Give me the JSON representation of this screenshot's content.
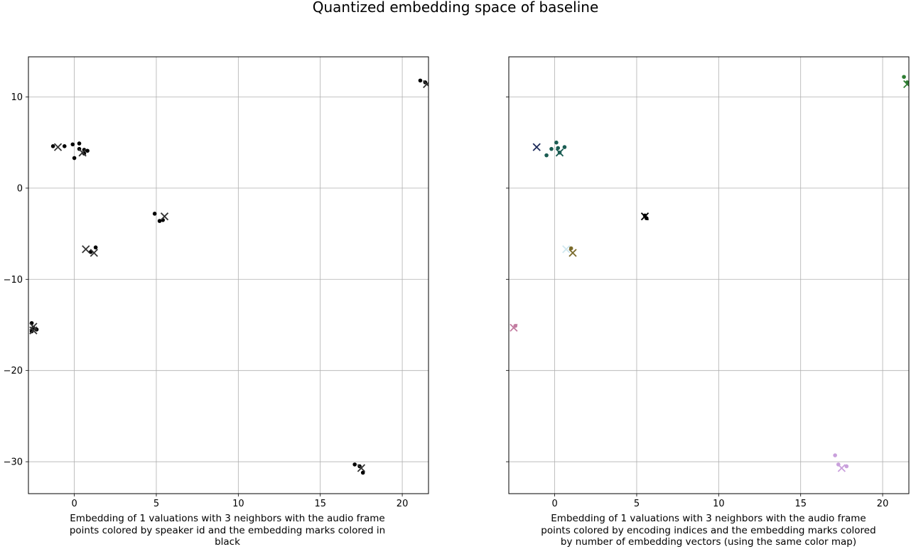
{
  "title": "Quantized embedding space of baseline",
  "chart_data": [
    {
      "type": "scatter",
      "xlabel": "Embedding of 1 valuations with 3 neighbors with the audio frame points colored by speaker id and the embedding marks colored in black",
      "ylabel": "",
      "xlim": [
        -2.8,
        21.6
      ],
      "ylim": [
        -33.5,
        14.4
      ],
      "xticks": [
        0,
        5,
        10,
        15,
        20
      ],
      "yticks": [
        10,
        0,
        -10,
        -20,
        -30
      ],
      "grid": true,
      "series": [
        {
          "marker": "dot",
          "color": "#000000",
          "points": [
            [
              21.1,
              11.8
            ],
            [
              21.4,
              11.6
            ],
            [
              -1.3,
              4.6
            ],
            [
              -0.6,
              4.6
            ],
            [
              -0.1,
              4.8
            ],
            [
              0.3,
              4.9
            ],
            [
              0.3,
              4.3
            ],
            [
              0.6,
              4.2
            ],
            [
              0.8,
              4.1
            ],
            [
              0.6,
              3.8
            ],
            [
              0.0,
              3.3
            ],
            [
              4.9,
              -2.8
            ],
            [
              5.2,
              -3.6
            ],
            [
              5.4,
              -3.5
            ],
            [
              1.3,
              -6.5
            ],
            [
              1.0,
              -7.0
            ],
            [
              -2.6,
              -14.8
            ],
            [
              -2.5,
              -15.3
            ],
            [
              -2.3,
              -15.5
            ],
            [
              -2.6,
              -15.7
            ],
            [
              17.1,
              -30.3
            ],
            [
              17.4,
              -30.5
            ],
            [
              17.6,
              -31.2
            ]
          ]
        },
        {
          "marker": "x",
          "color": "#333333",
          "points": [
            [
              21.5,
              11.4
            ],
            [
              -1.0,
              4.5
            ],
            [
              0.5,
              3.9
            ],
            [
              5.5,
              -3.1
            ],
            [
              0.7,
              -6.7
            ],
            [
              1.2,
              -7.1
            ],
            [
              -2.5,
              -15.2
            ],
            [
              -2.5,
              -15.6
            ],
            [
              17.5,
              -30.7
            ]
          ]
        }
      ]
    },
    {
      "type": "scatter",
      "xlabel": "Embedding of 1 valuations with 3 neighbors with the audio frame points colored by encoding indices and the embedding marks colored by number of embedding vectors (using the same color map)",
      "ylabel": "",
      "xlim": [
        -2.8,
        21.6
      ],
      "ylim": [
        -33.5,
        14.4
      ],
      "xticks": [
        0,
        5,
        10,
        15,
        20
      ],
      "yticks": [
        10,
        0,
        -10,
        -20,
        -30
      ],
      "grid": true,
      "series": [
        {
          "marker": "dot",
          "points": [
            {
              "x": 21.3,
              "y": 12.2,
              "color": "#2e7d32"
            },
            {
              "x": 21.5,
              "y": 11.6,
              "color": "#2e7d32"
            },
            {
              "x": 0.1,
              "y": 5.0,
              "color": "#1a5c52"
            },
            {
              "x": -0.2,
              "y": 4.3,
              "color": "#1a5c52"
            },
            {
              "x": 0.2,
              "y": 4.4,
              "color": "#1a5c52"
            },
            {
              "x": 0.6,
              "y": 4.5,
              "color": "#1a5c52"
            },
            {
              "x": -0.5,
              "y": 3.6,
              "color": "#1a5c52"
            },
            {
              "x": 0.3,
              "y": 3.9,
              "color": "#1a5c52"
            },
            {
              "x": 5.5,
              "y": -3.0,
              "color": "#000000"
            },
            {
              "x": 5.6,
              "y": -3.3,
              "color": "#000000"
            },
            {
              "x": 1.0,
              "y": -6.6,
              "color": "#7a6a2a"
            },
            {
              "x": -2.4,
              "y": -15.1,
              "color": "#c27ba0"
            },
            {
              "x": 17.1,
              "y": -29.3,
              "color": "#c9a0dc"
            },
            {
              "x": 17.3,
              "y": -30.3,
              "color": "#c9a0dc"
            },
            {
              "x": 17.8,
              "y": -30.5,
              "color": "#c9a0dc"
            }
          ]
        },
        {
          "marker": "x",
          "points": [
            {
              "x": 21.5,
              "y": 11.4,
              "color": "#2e7d32"
            },
            {
              "x": -1.1,
              "y": 4.5,
              "color": "#1c2a5a"
            },
            {
              "x": 0.3,
              "y": 3.9,
              "color": "#1a5c52"
            },
            {
              "x": 5.5,
              "y": -3.1,
              "color": "#000000"
            },
            {
              "x": 0.7,
              "y": -6.7,
              "color": "#cfe7ef"
            },
            {
              "x": 1.1,
              "y": -7.1,
              "color": "#7a6a2a"
            },
            {
              "x": -2.5,
              "y": -15.3,
              "color": "#c27ba0"
            },
            {
              "x": 17.5,
              "y": -30.7,
              "color": "#c9a0dc"
            }
          ]
        }
      ]
    }
  ]
}
